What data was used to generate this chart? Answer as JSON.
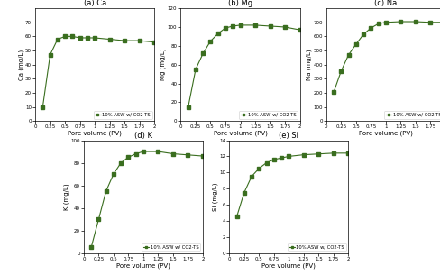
{
  "Ca": {
    "title": "(a) Ca",
    "ylabel": "Ca (mg/L)",
    "xlabel": "Pore volume (PV)",
    "ylim": [
      0,
      80
    ],
    "yticks": [
      0,
      10,
      20,
      30,
      40,
      50,
      60,
      70
    ],
    "x": [
      0.125,
      0.25,
      0.375,
      0.5,
      0.625,
      0.75,
      0.875,
      1.0,
      1.25,
      1.5,
      1.75,
      2.0
    ],
    "y": [
      10,
      47,
      58,
      60,
      60,
      59,
      59,
      59,
      58,
      57,
      57,
      56
    ]
  },
  "Mg": {
    "title": "(b) Mg",
    "ylabel": "Mg (mg/L)",
    "xlabel": "Pore volume (PV)",
    "ylim": [
      0,
      120
    ],
    "yticks": [
      0,
      20,
      40,
      60,
      80,
      100,
      120
    ],
    "x": [
      0.125,
      0.25,
      0.375,
      0.5,
      0.625,
      0.75,
      0.875,
      1.0,
      1.25,
      1.5,
      1.75,
      2.0
    ],
    "y": [
      15,
      55,
      72,
      85,
      93,
      99,
      101,
      102,
      102,
      101,
      100,
      97
    ]
  },
  "Na": {
    "title": "(c) Na",
    "ylabel": "Na (mg/L)",
    "xlabel": "Pore volume (PV)",
    "ylim": [
      0,
      800
    ],
    "yticks": [
      0,
      100,
      200,
      300,
      400,
      500,
      600,
      700
    ],
    "x": [
      0.125,
      0.25,
      0.375,
      0.5,
      0.625,
      0.75,
      0.875,
      1.0,
      1.25,
      1.5,
      1.75,
      2.0
    ],
    "y": [
      205,
      355,
      470,
      545,
      615,
      660,
      690,
      700,
      705,
      705,
      700,
      700
    ]
  },
  "K": {
    "title": "(d) K",
    "ylabel": "K (mg/L)",
    "xlabel": "Pore volume (PV)",
    "ylim": [
      0,
      100
    ],
    "yticks": [
      0,
      20,
      40,
      60,
      80,
      100
    ],
    "x": [
      0.125,
      0.25,
      0.375,
      0.5,
      0.625,
      0.75,
      0.875,
      1.0,
      1.25,
      1.5,
      1.75,
      2.0
    ],
    "y": [
      5,
      30,
      55,
      70,
      80,
      85,
      88,
      90,
      90,
      88,
      87,
      86
    ]
  },
  "Si": {
    "title": "(e) Si",
    "ylabel": "Si (mg/L)",
    "xlabel": "Pore volume (PV)",
    "ylim": [
      0,
      14
    ],
    "yticks": [
      0,
      2,
      4,
      6,
      8,
      10,
      12,
      14
    ],
    "x": [
      0.125,
      0.25,
      0.375,
      0.5,
      0.625,
      0.75,
      0.875,
      1.0,
      1.25,
      1.5,
      1.75,
      2.0
    ],
    "y": [
      4.5,
      7.5,
      9.5,
      10.5,
      11.2,
      11.6,
      11.8,
      12.0,
      12.2,
      12.3,
      12.4,
      12.4
    ]
  },
  "legend_label": "10% ASW w/ CO2-TS",
  "line_color": "#3a6e1f",
  "marker": "s",
  "markersize": 2.2,
  "linewidth": 0.8,
  "xticks": [
    0,
    0.25,
    0.5,
    0.75,
    1.0,
    1.25,
    1.5,
    1.75,
    2.0
  ],
  "xtick_labels": [
    "0",
    "0.25",
    "0.5",
    "0.75",
    "1",
    "1.25",
    "1.5",
    "1.75",
    "2"
  ],
  "title_fontsize": 6,
  "label_fontsize": 5,
  "tick_fontsize": 4,
  "legend_fontsize": 3.8
}
